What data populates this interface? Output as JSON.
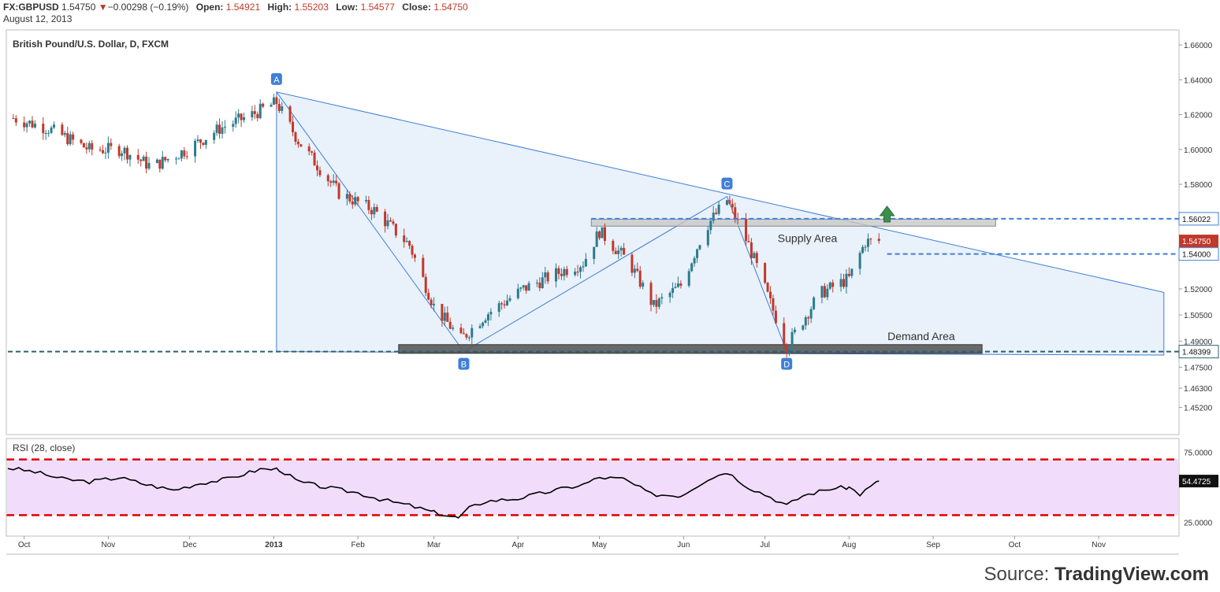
{
  "header": {
    "symbol": "FX:GBPUSD",
    "price": "1.54750",
    "change": "−0.00298 (−0.19%)",
    "open_label": "Open:",
    "open": "1.54921",
    "high_label": "High:",
    "high": "1.55203",
    "low_label": "Low:",
    "low": "1.54577",
    "close_label": "Close:",
    "close": "1.54750",
    "date": "August 12, 2013"
  },
  "footer": {
    "source_label": "Source:",
    "source_name": "TradingView.com"
  },
  "colors": {
    "up": "#2c7b8c",
    "down": "#c0392b",
    "pattern": "#3f7fd6",
    "pattern_fill": "#e7eff9",
    "rsi_band": "#f1dcfb",
    "rsi_line": "#000000",
    "rsi_bound": "#dd0000"
  },
  "chart_data": [
    {
      "type": "candlestick",
      "title": "British Pound/U.S. Dollar, D, FXCM",
      "ylim": [
        1.44,
        1.665
      ],
      "y_ticks": [
        "1.66000",
        "1.64000",
        "1.62000",
        "1.60000",
        "1.58000",
        "1.56000",
        "1.54000",
        "1.52000",
        "1.50500",
        "1.49000",
        "1.47500",
        "1.46300",
        "1.45200"
      ],
      "y_tick_values": [
        1.66,
        1.64,
        1.62,
        1.6,
        1.58,
        1.56,
        1.54,
        1.52,
        1.505,
        1.49,
        1.475,
        1.463,
        1.452
      ],
      "x_ticks": [
        "Oct",
        "Nov",
        "Dec",
        "2013",
        "Feb",
        "Mar",
        "Apr",
        "May",
        "Jun",
        "Jul",
        "Aug",
        "Sep",
        "Oct",
        "Nov"
      ],
      "x_tick_dates": [
        "2012-10-01",
        "2012-11-01",
        "2012-12-01",
        "2013-01-01",
        "2013-02-01",
        "2013-03-01",
        "2013-04-01",
        "2013-05-01",
        "2013-06-01",
        "2013-07-01",
        "2013-08-01",
        "2013-09-01",
        "2013-10-01",
        "2013-11-01"
      ],
      "close_path": [
        [
          "2012-09-27",
          1.618
        ],
        [
          "2012-10-10",
          1.612
        ],
        [
          "2012-10-25",
          1.6
        ],
        [
          "2012-11-06",
          1.6
        ],
        [
          "2012-11-17",
          1.59
        ],
        [
          "2012-11-30",
          1.6
        ],
        [
          "2012-12-12",
          1.612
        ],
        [
          "2012-12-24",
          1.62
        ],
        [
          "2013-01-02",
          1.627
        ],
        [
          "2013-01-10",
          1.605
        ],
        [
          "2013-01-25",
          1.575
        ],
        [
          "2013-02-07",
          1.565
        ],
        [
          "2013-02-20",
          1.545
        ],
        [
          "2013-03-01",
          1.51
        ],
        [
          "2013-03-11",
          1.491
        ],
        [
          "2013-03-20",
          1.505
        ],
        [
          "2013-04-03",
          1.52
        ],
        [
          "2013-04-17",
          1.53
        ],
        [
          "2013-04-25",
          1.535
        ],
        [
          "2013-05-01",
          1.553
        ],
        [
          "2013-05-12",
          1.535
        ],
        [
          "2013-05-21",
          1.51
        ],
        [
          "2013-05-31",
          1.522
        ],
        [
          "2013-06-09",
          1.555
        ],
        [
          "2013-06-17",
          1.571
        ],
        [
          "2013-06-25",
          1.545
        ],
        [
          "2013-07-09",
          1.487
        ],
        [
          "2013-07-21",
          1.517
        ],
        [
          "2013-08-01",
          1.526
        ],
        [
          "2013-08-07",
          1.547
        ],
        [
          "2013-08-12",
          1.5475
        ]
      ],
      "pattern": {
        "points": [
          {
            "label": "A",
            "date": "2013-01-02",
            "price": 1.633
          },
          {
            "label": "B",
            "date": "2013-03-12",
            "price": 1.484
          },
          {
            "label": "C",
            "date": "2013-06-17",
            "price": 1.573
          },
          {
            "label": "D",
            "date": "2013-07-09",
            "price": 1.484
          }
        ],
        "trendline_end": {
          "date": "2013-11-25",
          "price": 1.518
        },
        "base_end": {
          "date": "2013-11-25",
          "price": 1.482
        }
      },
      "zones": [
        {
          "label": "Supply Area",
          "date_start": "2013-04-28",
          "date_end": "2013-09-24",
          "low": 1.556,
          "high": 1.56
        },
        {
          "label": "Demand Area",
          "date_start": "2013-02-16",
          "date_end": "2013-09-19",
          "low": 1.483,
          "high": 1.488
        }
      ],
      "levels": [
        {
          "price": 1.56022,
          "label": "1.56022",
          "date_start": "2013-04-28",
          "style": "dashed",
          "color": "#3f7fd6"
        },
        {
          "price": 1.54,
          "label": "1.54000",
          "date_start": "2013-08-15",
          "style": "dashed",
          "color": "#3f7fd6"
        },
        {
          "price": 1.48399,
          "label": "1.48399",
          "date_start": "2012-09-25",
          "style": "dashed",
          "color": "#2c6070"
        }
      ],
      "last_price": {
        "price": 1.5475,
        "label": "1.54750"
      },
      "arrow": {
        "date": "2013-08-15",
        "price": 1.562,
        "direction": "up",
        "color": "#3b8f4a"
      }
    },
    {
      "type": "line",
      "title": "RSI (28, close)",
      "ylim": [
        15,
        85
      ],
      "y_ticks": [
        "75.0000",
        "25.0000"
      ],
      "y_tick_values": [
        75,
        25
      ],
      "bounds": [
        70,
        30
      ],
      "last_value": {
        "value": 54.4725,
        "label": "54.4725"
      },
      "series": [
        {
          "values": [
            [
              "2012-09-25",
              64
            ],
            [
              "2012-10-05",
              61
            ],
            [
              "2012-10-15",
              56
            ],
            [
              "2012-10-25",
              54
            ],
            [
              "2012-11-05",
              57
            ],
            [
              "2012-11-15",
              52
            ],
            [
              "2012-11-25",
              48
            ],
            [
              "2012-12-05",
              53
            ],
            [
              "2012-12-15",
              56
            ],
            [
              "2012-12-27",
              63
            ],
            [
              "2013-01-03",
              63
            ],
            [
              "2013-01-10",
              54
            ],
            [
              "2013-01-20",
              50
            ],
            [
              "2013-02-01",
              46
            ],
            [
              "2013-02-10",
              41
            ],
            [
              "2013-02-20",
              37
            ],
            [
              "2013-03-01",
              32
            ],
            [
              "2013-03-10",
              28
            ],
            [
              "2013-03-14",
              35
            ],
            [
              "2013-03-20",
              40
            ],
            [
              "2013-04-01",
              42
            ],
            [
              "2013-04-15",
              48
            ],
            [
              "2013-04-25",
              52
            ],
            [
              "2013-05-01",
              57
            ],
            [
              "2013-05-10",
              56
            ],
            [
              "2013-05-20",
              45
            ],
            [
              "2013-05-31",
              44
            ],
            [
              "2013-06-10",
              56
            ],
            [
              "2013-06-17",
              61
            ],
            [
              "2013-06-25",
              50
            ],
            [
              "2013-07-03",
              43
            ],
            [
              "2013-07-09",
              37
            ],
            [
              "2013-07-15",
              44
            ],
            [
              "2013-07-25",
              49
            ],
            [
              "2013-08-01",
              50
            ],
            [
              "2013-08-05",
              45
            ],
            [
              "2013-08-12",
              54.4725
            ]
          ]
        }
      ]
    }
  ]
}
